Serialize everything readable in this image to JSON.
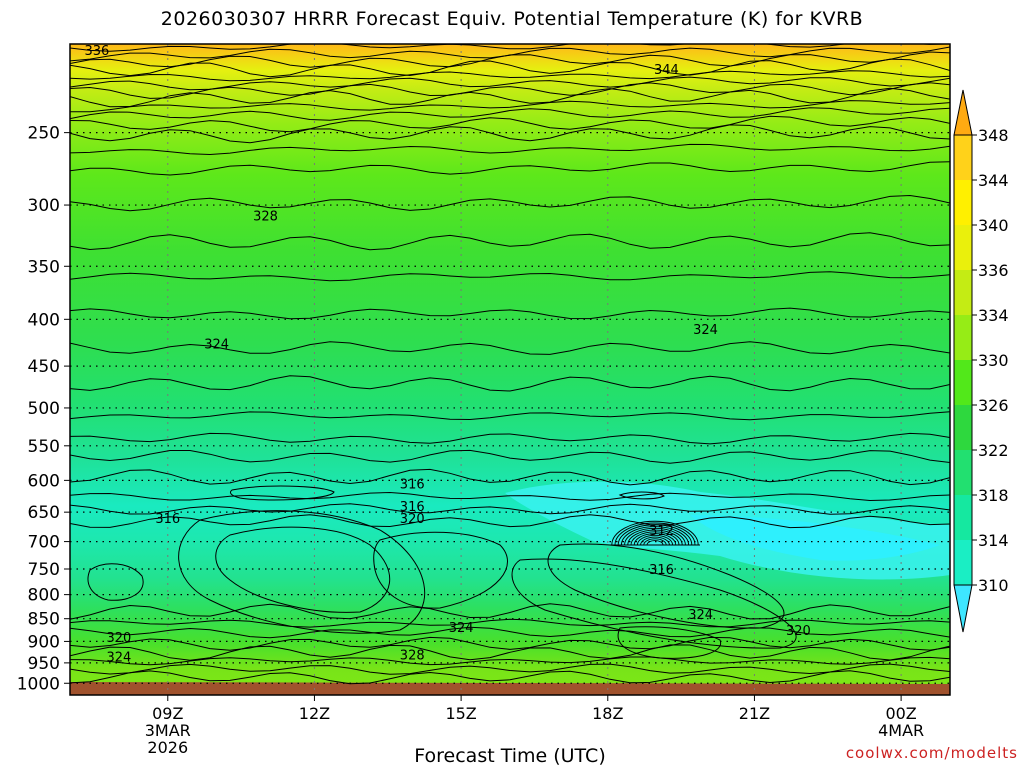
{
  "chart_data": {
    "type": "contour",
    "title": "2026030307 HRRR Forecast Equiv. Potential Temperature (K) for KVRB",
    "xlabel": "Forecast Time (UTC)",
    "ylabel": "",
    "credit": "coolwx.com/modelts",
    "x_ticks": [
      {
        "label": "09Z",
        "sub1": "3MAR",
        "sub2": "2026",
        "hour": 2
      },
      {
        "label": "12Z",
        "sub1": "",
        "sub2": "",
        "hour": 5
      },
      {
        "label": "15Z",
        "sub1": "",
        "sub2": "",
        "hour": 8
      },
      {
        "label": "18Z",
        "sub1": "",
        "sub2": "",
        "hour": 11
      },
      {
        "label": "21Z",
        "sub1": "",
        "sub2": "",
        "hour": 14
      },
      {
        "label": "00Z",
        "sub1": "4MAR",
        "sub2": "",
        "hour": 17
      }
    ],
    "xlim_hours": [
      0,
      18
    ],
    "y_axis": "pressure (hPa), log scale",
    "y_ticks": [
      250,
      300,
      350,
      400,
      450,
      500,
      550,
      600,
      650,
      700,
      750,
      800,
      850,
      900,
      950,
      1000
    ],
    "ylim": [
      200,
      1030
    ],
    "grid": true,
    "colorbar": {
      "labels": [
        310,
        314,
        318,
        322,
        326,
        330,
        334,
        336,
        340,
        344,
        348
      ],
      "colors": [
        "#3ee6ff",
        "#1aeec4",
        "#15e8a0",
        "#22e070",
        "#2ed83e",
        "#52e81a",
        "#96ec16",
        "#c4ec14",
        "#eaf00c",
        "#fff000",
        "#ffd21a",
        "#ffaa12"
      ],
      "extend": "both"
    },
    "contour_labels": [
      {
        "text": "336",
        "hour": 0.55,
        "p": 203
      },
      {
        "text": "344",
        "hour": 12.2,
        "p": 213
      },
      {
        "text": "328",
        "hour": 4.0,
        "p": 308
      },
      {
        "text": "324",
        "hour": 3.0,
        "p": 425
      },
      {
        "text": "324",
        "hour": 13.0,
        "p": 410
      },
      {
        "text": "316",
        "hour": 7.0,
        "p": 605
      },
      {
        "text": "316",
        "hour": 2.0,
        "p": 660
      },
      {
        "text": "316",
        "hour": 7.0,
        "p": 640
      },
      {
        "text": "320",
        "hour": 7.0,
        "p": 660
      },
      {
        "text": "312",
        "hour": 12.1,
        "p": 680
      },
      {
        "text": "316",
        "hour": 12.1,
        "p": 750
      },
      {
        "text": "324",
        "hour": 8.0,
        "p": 868
      },
      {
        "text": "324",
        "hour": 12.9,
        "p": 840
      },
      {
        "text": "320",
        "hour": 14.9,
        "p": 875
      },
      {
        "text": "320",
        "hour": 1.0,
        "p": 890
      },
      {
        "text": "324",
        "hour": 1.0,
        "p": 935
      },
      {
        "text": "328",
        "hour": 7.0,
        "p": 930
      }
    ]
  }
}
